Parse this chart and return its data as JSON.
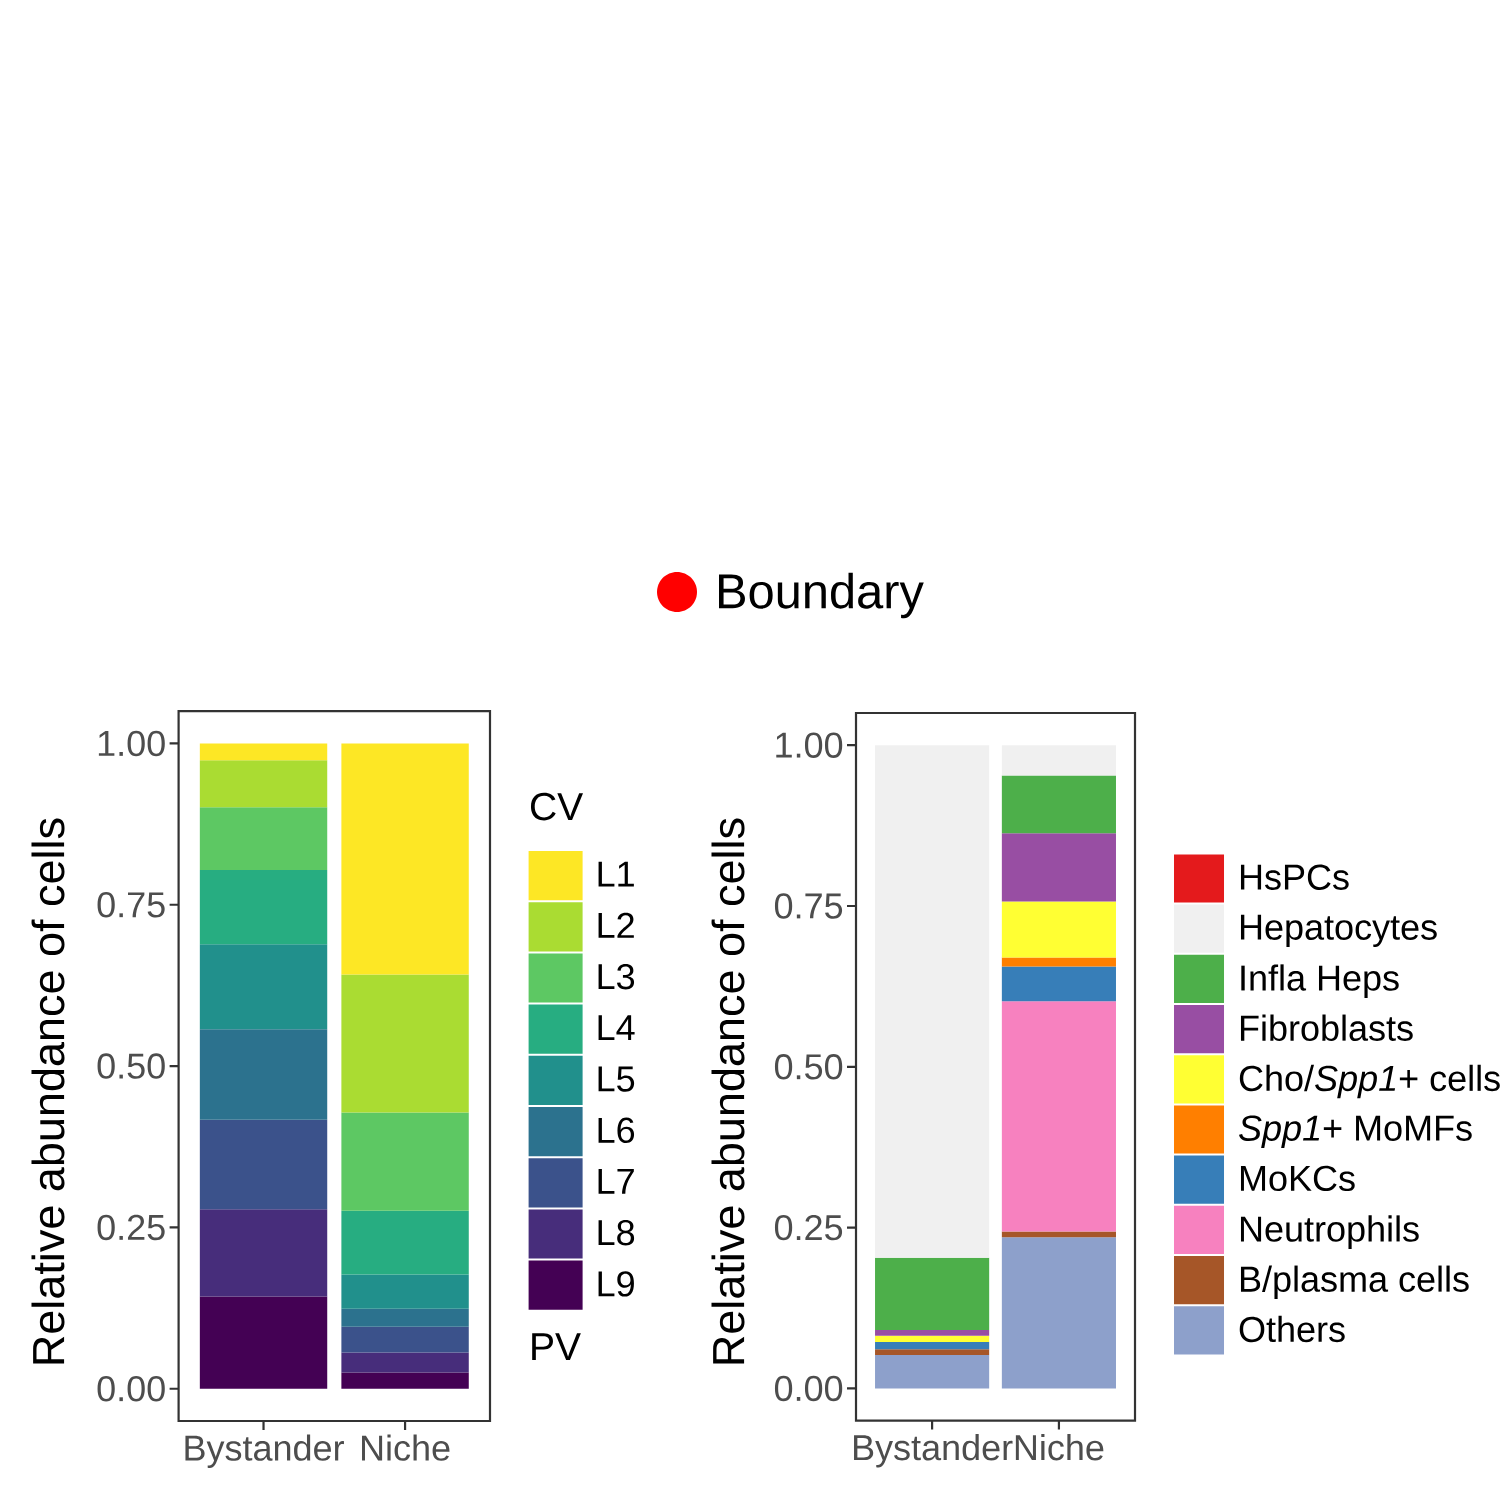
{
  "chart_data": [
    {
      "type": "other",
      "series": [
        {
          "name": "Boundary",
          "color": "#ff0000"
        }
      ],
      "legend": "bottom"
    },
    {
      "type": "bar",
      "stacked": true,
      "categories": [
        "Bystander",
        "Niche"
      ],
      "ylabel": "Relative abundance of cells",
      "ylim": [
        -0.05,
        1.05
      ],
      "yticks": [
        {
          "value": 0,
          "label": "0.00"
        },
        {
          "value": 0.25,
          "label": "0.25"
        },
        {
          "value": 0.5,
          "label": "0.50"
        },
        {
          "value": 0.75,
          "label": "0.75"
        },
        {
          "value": 1,
          "label": "1.00"
        }
      ],
      "legend": "right",
      "legend_title": "CV",
      "annotations": [
        "PV"
      ],
      "series": [
        {
          "name": "L9",
          "color": "#440154",
          "values": [
            0.143,
            0.025
          ]
        },
        {
          "name": "L8",
          "color": "#472D7B",
          "values": [
            0.135,
            0.031
          ]
        },
        {
          "name": "L7",
          "color": "#3B528B",
          "values": [
            0.139,
            0.04
          ]
        },
        {
          "name": "L6",
          "color": "#2C728E",
          "values": [
            0.14,
            0.028
          ]
        },
        {
          "name": "L5",
          "color": "#21908C",
          "values": [
            0.132,
            0.053
          ]
        },
        {
          "name": "L4",
          "color": "#27AD81",
          "values": [
            0.115,
            0.099
          ]
        },
        {
          "name": "L3",
          "color": "#5DC863",
          "values": [
            0.097,
            0.152
          ]
        },
        {
          "name": "L2",
          "color": "#AADC32",
          "values": [
            0.073,
            0.214
          ]
        },
        {
          "name": "L1",
          "color": "#FDE725",
          "values": [
            0.026,
            0.358
          ]
        }
      ]
    },
    {
      "type": "bar",
      "stacked": true,
      "categories": [
        "Bystander",
        "Niche"
      ],
      "ylabel": "Relative abundance of cells",
      "ylim": [
        -0.05,
        1.05
      ],
      "yticks": [
        {
          "value": 0,
          "label": "0.00"
        },
        {
          "value": 0.25,
          "label": "0.25"
        },
        {
          "value": 0.5,
          "label": "0.50"
        },
        {
          "value": 0.75,
          "label": "0.75"
        },
        {
          "value": 1,
          "label": "1.00"
        }
      ],
      "legend": "right",
      "series": [
        {
          "name": "Others",
          "color": "#8DA0CB",
          "values": [
            0.052,
            0.235
          ]
        },
        {
          "name": "B/plasma cells",
          "color": "#A65628",
          "values": [
            0.009,
            0.009
          ]
        },
        {
          "name": "Neutrophils",
          "color": "#F781BF",
          "values": [
            null,
            0.358
          ]
        },
        {
          "name": "MoKCs",
          "color": "#377EB8",
          "values": [
            0.011,
            0.054
          ]
        },
        {
          "name": "*Spp1*+ MoMFs",
          "color": "#FF7F00",
          "values": [
            null,
            0.014
          ]
        },
        {
          "name": "Cho/*Spp1*+ cells",
          "color": "#FFFF33",
          "values": [
            0.01,
            0.087
          ]
        },
        {
          "name": "Fibroblasts",
          "color": "#984EA3",
          "values": [
            0.009,
            0.106
          ]
        },
        {
          "name": "Infla Heps",
          "color": "#4DAF4A",
          "values": [
            0.112,
            0.09
          ]
        },
        {
          "name": "Hepatocytes",
          "color": "#F0F0F0",
          "values": [
            0.797,
            0.047
          ]
        },
        {
          "name": "HsPCs",
          "color": "#E41A1C",
          "values": [
            null,
            null
          ]
        }
      ]
    }
  ]
}
